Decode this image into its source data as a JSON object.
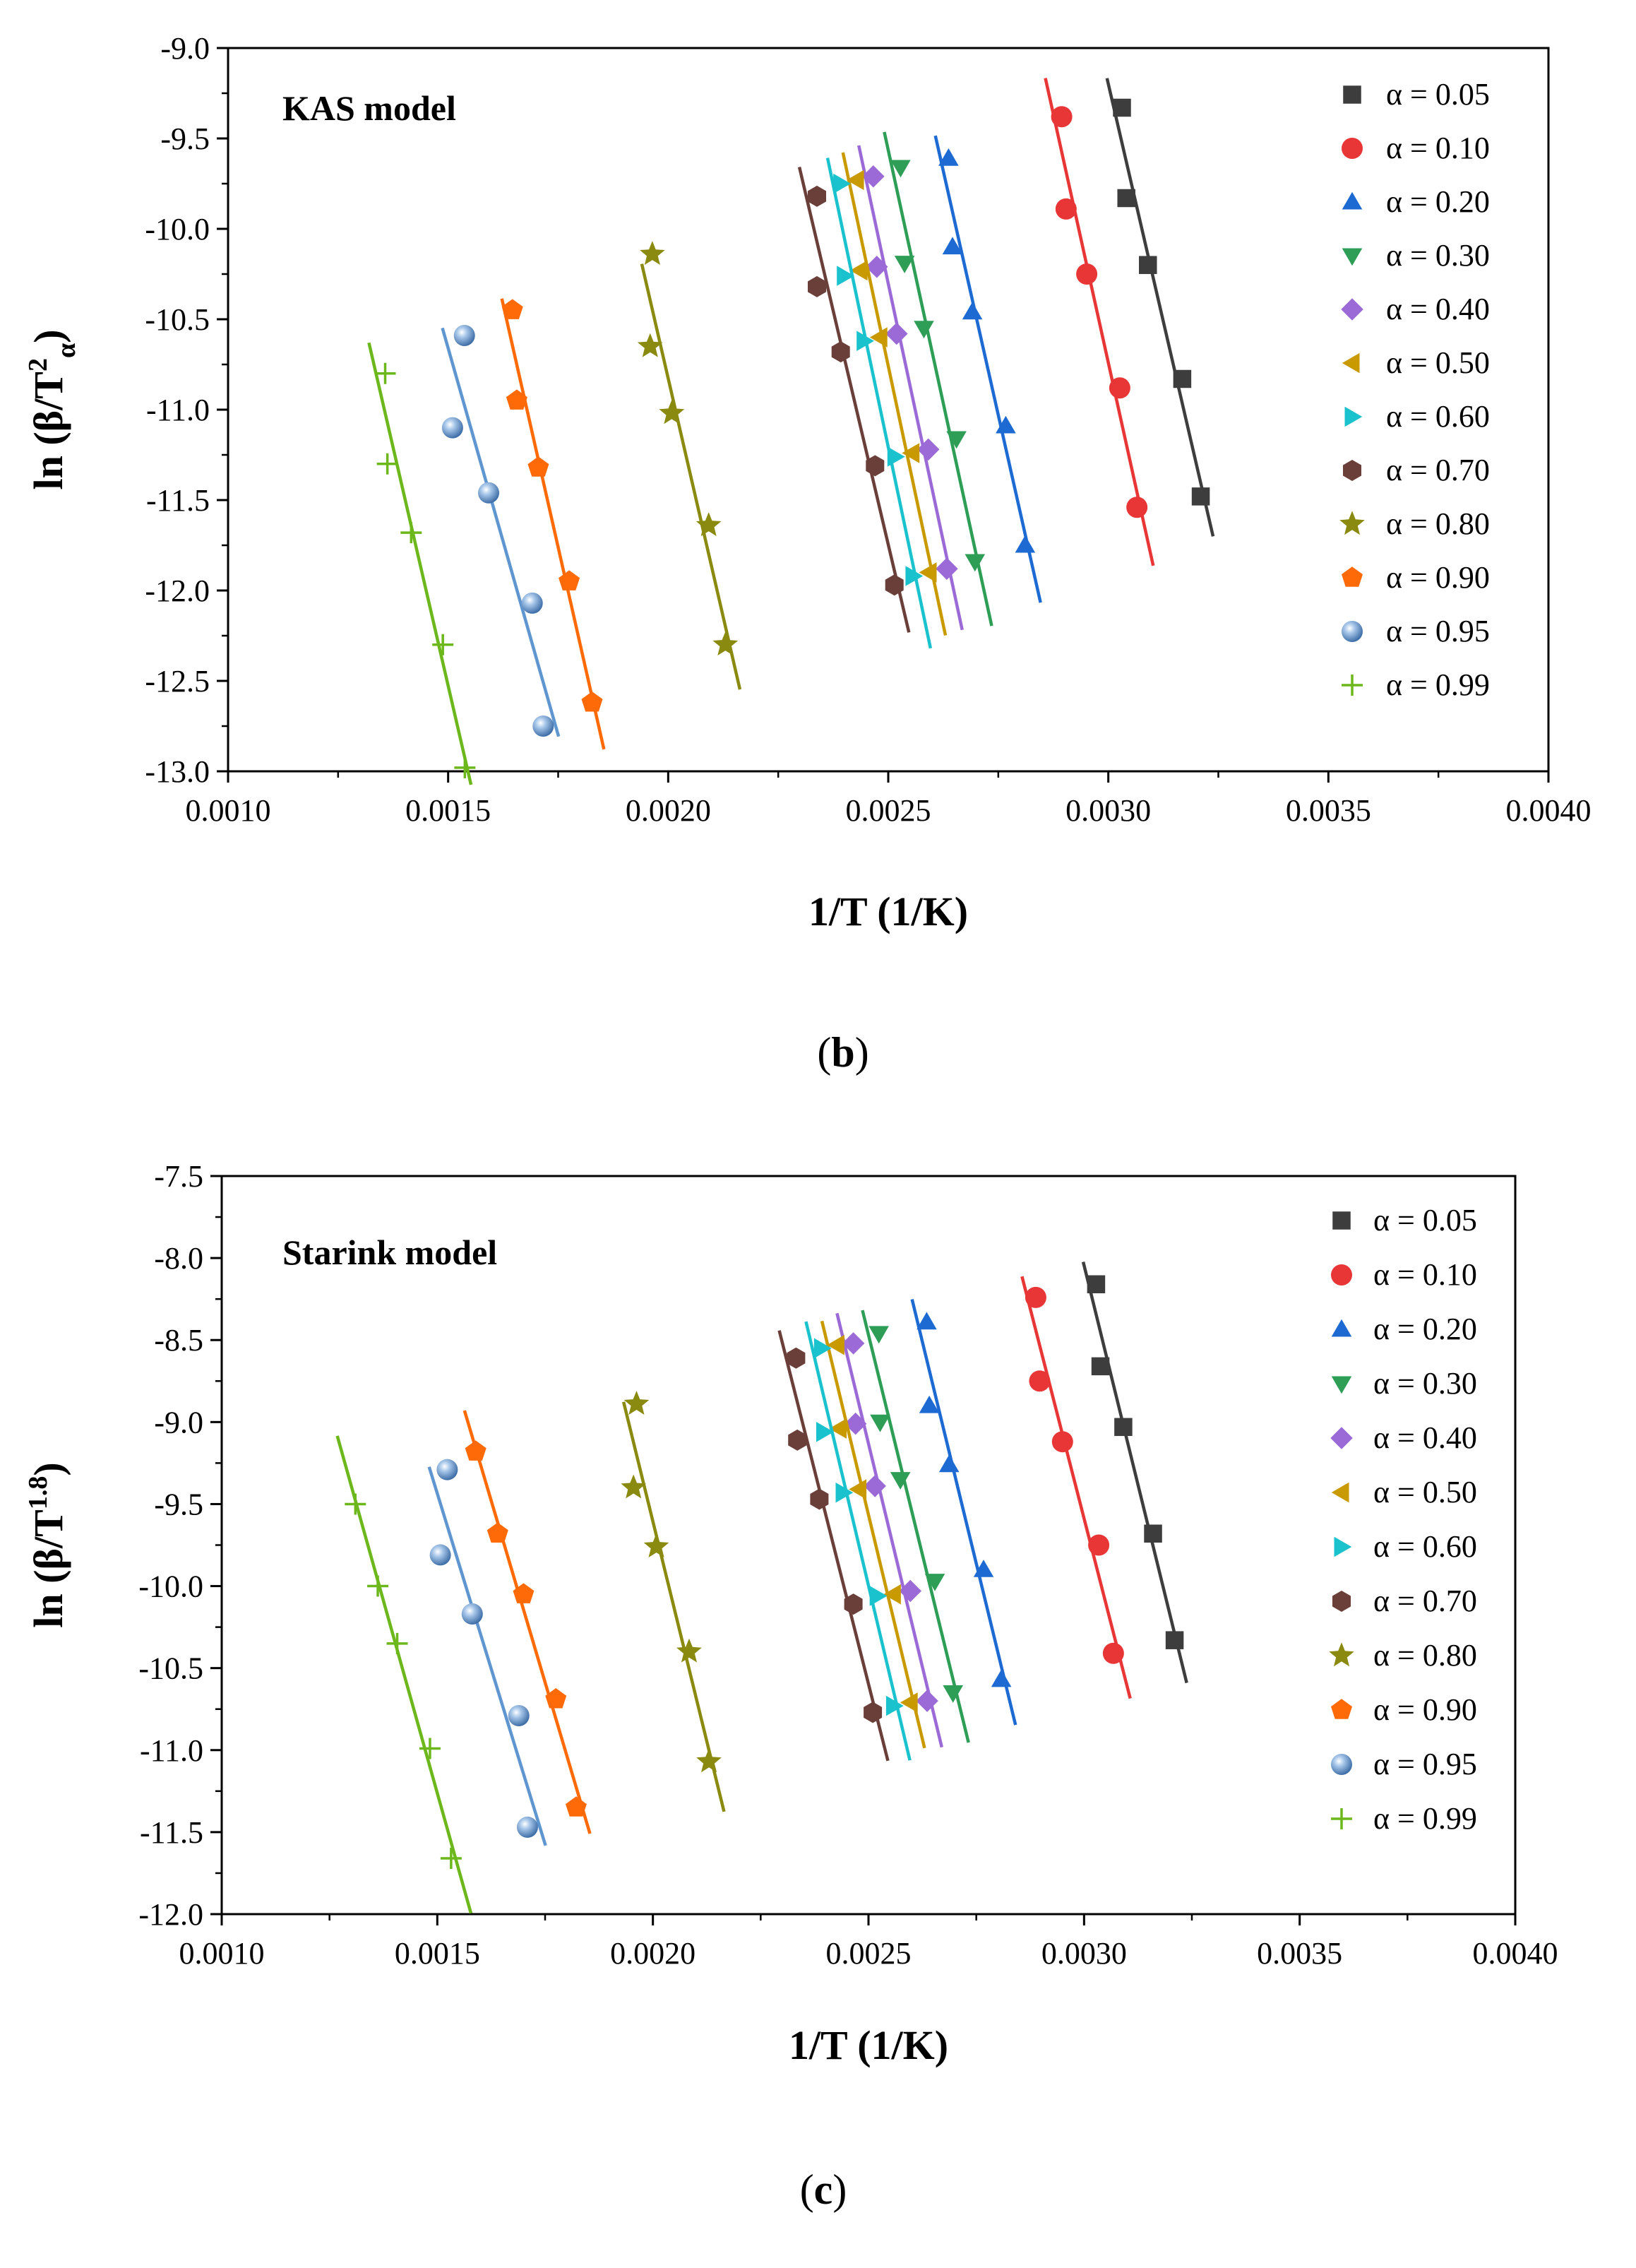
{
  "chart_data": [
    {
      "type": "scatter",
      "panel": "(b)",
      "panel_letter": "b",
      "title": "KAS model",
      "xlabel": "1/T (1/K)",
      "ylabel": {
        "main": "ln (β/T",
        "sup": "2",
        "sub": "α",
        "close": ")"
      },
      "xlim": [
        0.001,
        0.004
      ],
      "ylim": [
        -13.0,
        -9.0
      ],
      "xticks": [
        0.001,
        0.0015,
        0.002,
        0.0025,
        0.003,
        0.0035,
        0.004
      ],
      "xtick_labels": [
        "0.0010",
        "0.0015",
        "0.0020",
        "0.0025",
        "0.0030",
        "0.0035",
        "0.0040"
      ],
      "yticks": [
        -9.0,
        -9.5,
        -10.0,
        -10.5,
        -11.0,
        -11.5,
        -12.0,
        -12.5,
        -13.0
      ],
      "ytick_labels": [
        "-9.0",
        "-9.5",
        "-10.0",
        "-10.5",
        "-11.0",
        "-11.5",
        "-12.0",
        "-12.5",
        "-13.0"
      ],
      "legend_position": "right",
      "series": [
        {
          "name": "α = 0.05",
          "marker": "square",
          "color": "#3d3d3d",
          "x": [
            0.003031,
            0.003041,
            0.00309,
            0.003168,
            0.00321
          ],
          "y": [
            -9.33,
            -9.83,
            -10.2,
            -10.83,
            -11.48
          ],
          "fit_x": [
            0.002997,
            0.003238
          ]
        },
        {
          "name": "α = 0.10",
          "marker": "circle",
          "color": "#e83535",
          "x": [
            0.002894,
            0.002904,
            0.002951,
            0.003026,
            0.003065
          ],
          "y": [
            -9.38,
            -9.89,
            -10.25,
            -10.88,
            -11.54
          ],
          "fit_x": [
            0.002857,
            0.003102
          ]
        },
        {
          "name": "α = 0.20",
          "marker": "triangle-up",
          "color": "#1d6ad3",
          "x": [
            0.002637,
            0.002646,
            0.002691,
            0.002767,
            0.002811
          ],
          "y": [
            -9.61,
            -10.1,
            -10.46,
            -11.09,
            -11.75
          ],
          "fit_x": [
            0.002607,
            0.002846
          ]
        },
        {
          "name": "α = 0.30",
          "marker": "triangle-down",
          "color": "#2e9e57",
          "x": [
            0.002528,
            0.002537,
            0.002581,
            0.002655,
            0.002697
          ],
          "y": [
            -9.66,
            -10.19,
            -10.55,
            -11.16,
            -11.84
          ],
          "fit_x": [
            0.002491,
            0.002735
          ]
        },
        {
          "name": "α = 0.40",
          "marker": "diamond",
          "color": "#9b6ad6",
          "x": [
            0.002466,
            0.002474,
            0.002519,
            0.002591,
            0.002633
          ],
          "y": [
            -9.71,
            -10.21,
            -10.58,
            -11.22,
            -11.88
          ],
          "fit_x": [
            0.002433,
            0.002668
          ]
        },
        {
          "name": "α = 0.50",
          "marker": "triangle-left",
          "color": "#c99a00",
          "x": [
            0.002428,
            0.002436,
            0.002481,
            0.002554,
            0.002593
          ],
          "y": [
            -9.73,
            -10.23,
            -10.6,
            -11.24,
            -11.9
          ],
          "fit_x": [
            0.002397,
            0.00263
          ]
        },
        {
          "name": "α = 0.60",
          "marker": "triangle-right",
          "color": "#19c2cc",
          "x": [
            0.002392,
            0.0024,
            0.002445,
            0.002515,
            0.002556
          ],
          "y": [
            -9.75,
            -10.26,
            -10.62,
            -11.26,
            -11.92
          ],
          "fit_x": [
            0.002362,
            0.002596
          ]
        },
        {
          "name": "α = 0.70",
          "marker": "hexagon",
          "color": "#6b3f39",
          "x": [
            0.002338,
            0.002338,
            0.002392,
            0.00247,
            0.002514
          ],
          "y": [
            -9.82,
            -10.32,
            -10.68,
            -11.31,
            -11.97
          ],
          "fit_x": [
            0.002298,
            0.002547
          ]
        },
        {
          "name": "α = 0.80",
          "marker": "star",
          "color": "#8a8a10",
          "x": [
            0.001964,
            0.001959,
            0.002008,
            0.002092,
            0.00213
          ],
          "y": [
            -10.14,
            -10.65,
            -11.02,
            -11.64,
            -12.3
          ],
          "fit_x": [
            0.00194,
            0.002163
          ]
        },
        {
          "name": "α = 0.90",
          "marker": "pentagon",
          "color": "#ff6a08",
          "x": [
            0.001646,
            0.001656,
            0.001705,
            0.001775,
            0.001827
          ],
          "y": [
            -10.45,
            -10.95,
            -11.32,
            -11.95,
            -12.62
          ],
          "fit_x": [
            0.001622,
            0.001854
          ]
        },
        {
          "name": "α = 0.95",
          "marker": "sphere",
          "color": "#5f96d0",
          "x": [
            0.001537,
            0.00151,
            0.001592,
            0.001691,
            0.001716
          ],
          "y": [
            -10.59,
            -11.1,
            -11.46,
            -12.07,
            -12.75
          ],
          "fit_x": [
            0.001487,
            0.001751
          ]
        },
        {
          "name": "α = 0.99",
          "marker": "plus",
          "color": "#6cb81c",
          "x": [
            0.001357,
            0.001362,
            0.001416,
            0.001488,
            0.001538
          ],
          "y": [
            -10.8,
            -11.3,
            -11.68,
            -12.3,
            -12.98
          ],
          "fit_x": [
            0.00132,
            0.001552
          ]
        }
      ]
    },
    {
      "type": "scatter",
      "panel": "(c)",
      "panel_letter": "c",
      "title": "Starink model",
      "xlabel": "1/T (1/K)",
      "ylabel": {
        "main": "ln (β/T",
        "sup": "1.8",
        "sub": "",
        "close": ")"
      },
      "xlim": [
        0.001,
        0.004
      ],
      "ylim": [
        -12.0,
        -7.5
      ],
      "xticks": [
        0.001,
        0.0015,
        0.002,
        0.0025,
        0.003,
        0.0035,
        0.004
      ],
      "xtick_labels": [
        "0.0010",
        "0.0015",
        "0.0020",
        "0.0025",
        "0.0030",
        "0.0035",
        "0.0040"
      ],
      "yticks": [
        -7.5,
        -8.0,
        -8.5,
        -9.0,
        -9.5,
        -10.0,
        -10.5,
        -11.0,
        -11.5,
        -12.0
      ],
      "ytick_labels": [
        "-7.5",
        "-8.0",
        "-8.5",
        "-9.0",
        "-9.5",
        "-10.0",
        "-10.5",
        "-11.0",
        "-11.5",
        "-12.0"
      ],
      "legend_position": "right",
      "series": [
        {
          "name": "α = 0.05",
          "marker": "square",
          "color": "#3d3d3d",
          "x": [
            0.003028,
            0.003038,
            0.003091,
            0.00316,
            0.00321
          ],
          "y": [
            -8.16,
            -8.66,
            -9.03,
            -9.68,
            -10.33
          ],
          "fit_x": [
            0.002998,
            0.003238
          ]
        },
        {
          "name": "α = 0.10",
          "marker": "circle",
          "color": "#e83535",
          "x": [
            0.002888,
            0.002897,
            0.00295,
            0.003034,
            0.003068
          ],
          "y": [
            -8.24,
            -8.75,
            -9.12,
            -9.75,
            -10.41
          ],
          "fit_x": [
            0.002856,
            0.003107
          ]
        },
        {
          "name": "α = 0.20",
          "marker": "triangle-up",
          "color": "#1d6ad3",
          "x": [
            0.002635,
            0.002641,
            0.002687,
            0.002767,
            0.002808
          ],
          "y": [
            -8.39,
            -8.9,
            -9.26,
            -9.9,
            -10.57
          ],
          "fit_x": [
            0.002601,
            0.002841
          ]
        },
        {
          "name": "α = 0.30",
          "marker": "triangle-down",
          "color": "#2e9e57",
          "x": [
            0.002524,
            0.002527,
            0.002574,
            0.002654,
            0.002696
          ],
          "y": [
            -8.46,
            -9.0,
            -9.35,
            -9.97,
            -10.65
          ],
          "fit_x": [
            0.002486,
            0.002732
          ]
        },
        {
          "name": "α = 0.40",
          "marker": "diamond",
          "color": "#9b6ad6",
          "x": [
            0.002465,
            0.00247,
            0.002515,
            0.002597,
            0.002636
          ],
          "y": [
            -8.52,
            -9.01,
            -9.39,
            -10.03,
            -10.7
          ],
          "fit_x": [
            0.002427,
            0.00267
          ]
        },
        {
          "name": "α = 0.50",
          "marker": "triangle-left",
          "color": "#c99a00",
          "x": [
            0.002427,
            0.002432,
            0.002478,
            0.002558,
            0.002597
          ],
          "y": [
            -8.53,
            -9.04,
            -9.41,
            -10.05,
            -10.71
          ],
          "fit_x": [
            0.002392,
            0.00263
          ]
        },
        {
          "name": "α = 0.60",
          "marker": "triangle-right",
          "color": "#19c2cc",
          "x": [
            0.002391,
            0.002396,
            0.002441,
            0.00252,
            0.002558
          ],
          "y": [
            -8.55,
            -9.06,
            -9.43,
            -10.06,
            -10.73
          ],
          "fit_x": [
            0.002355,
            0.002596
          ]
        },
        {
          "name": "α = 0.70",
          "marker": "hexagon",
          "color": "#6b3f39",
          "x": [
            0.002332,
            0.002335,
            0.002386,
            0.002465,
            0.00251
          ],
          "y": [
            -8.61,
            -9.11,
            -9.47,
            -10.11,
            -10.77
          ],
          "fit_x": [
            0.002293,
            0.002545
          ]
        },
        {
          "name": "α = 0.80",
          "marker": "star",
          "color": "#8a8a10",
          "x": [
            0.001962,
            0.001955,
            0.002008,
            0.002084,
            0.00213
          ],
          "y": [
            -8.89,
            -9.4,
            -9.76,
            -10.4,
            -11.07
          ],
          "fit_x": [
            0.001932,
            0.002165
          ]
        },
        {
          "name": "α = 0.90",
          "marker": "pentagon",
          "color": "#ff6a08",
          "x": [
            0.001589,
            0.00164,
            0.0017,
            0.001775,
            0.001822
          ],
          "y": [
            -9.18,
            -9.68,
            -10.05,
            -10.69,
            -11.35
          ],
          "fit_x": [
            0.001563,
            0.001854
          ]
        },
        {
          "name": "α = 0.95",
          "marker": "sphere",
          "color": "#5f96d0",
          "x": [
            0.001523,
            0.001507,
            0.001581,
            0.001689,
            0.001709
          ],
          "y": [
            -9.29,
            -9.81,
            -10.17,
            -10.79,
            -11.47
          ],
          "fit_x": [
            0.001481,
            0.001751
          ]
        },
        {
          "name": "α = 0.99",
          "marker": "plus",
          "color": "#6cb81c",
          "x": [
            0.00131,
            0.001362,
            0.001407,
            0.001483,
            0.001532
          ],
          "y": [
            -9.5,
            -10.0,
            -10.35,
            -10.99,
            -11.66
          ],
          "fit_x": [
            0.001268,
            0.001578
          ]
        }
      ]
    }
  ]
}
